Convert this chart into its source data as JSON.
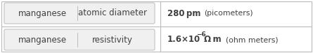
{
  "rows": [
    {
      "col1": "manganese",
      "col2": "atomic diameter",
      "value_bold": "280 pm",
      "value_unit": " (picometers)"
    },
    {
      "col1": "manganese",
      "col2": "resistivity",
      "value_unit": " (ohm meters)"
    }
  ],
  "bg_color": "#ffffff",
  "text_color": "#404040",
  "border_color": "#bbbbbb",
  "box_bg": "#f0f0f0",
  "font_size_main": 8.5,
  "font_size_unit": 7.8,
  "font_size_super": 6.5
}
